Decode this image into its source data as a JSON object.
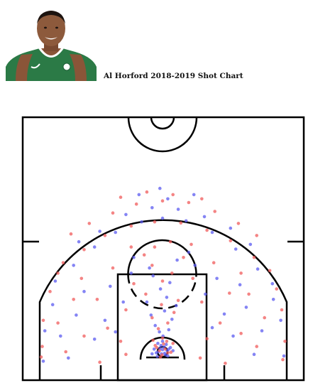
{
  "header": {
    "title": "Al Horford 2018-2019 Shot Chart",
    "photo_icon": "player-headshot-icon"
  },
  "chart_data": {
    "type": "scatter",
    "title": "Al Horford 2018-2019 Shot Chart",
    "xlabel": "",
    "ylabel": "",
    "grid": false,
    "legend": "none",
    "x_range": [
      -250,
      250
    ],
    "y_range": [
      -52,
      418
    ],
    "colors": {
      "made": "#5b5bf0",
      "missed": "#f05b5b",
      "lines": "#000000"
    },
    "series": [
      {
        "color": "#5b5bf0",
        "points": [
          [
            -2,
            -4
          ],
          [
            4,
            -3
          ],
          [
            -8,
            0
          ],
          [
            9,
            2
          ],
          [
            0,
            4
          ],
          [
            -5,
            6
          ],
          [
            6,
            -6
          ],
          [
            12,
            5
          ],
          [
            -12,
            -2
          ],
          [
            3,
            9
          ],
          [
            -3,
            12
          ],
          [
            15,
            8
          ],
          [
            -16,
            5
          ],
          [
            7,
            14
          ],
          [
            -9,
            16
          ],
          [
            0,
            20
          ],
          [
            20,
            2
          ],
          [
            -20,
            -4
          ],
          [
            10,
            -8
          ],
          [
            -10,
            -9
          ],
          [
            1,
            30
          ],
          [
            -6,
            38
          ],
          [
            12,
            42
          ],
          [
            -14,
            50
          ],
          [
            18,
            62
          ],
          [
            -22,
            70
          ],
          [
            4,
            78
          ],
          [
            26,
            88
          ],
          [
            -30,
            95
          ],
          [
            8,
            104
          ],
          [
            -4,
            120
          ],
          [
            14,
            132
          ],
          [
            -18,
            145
          ],
          [
            -90,
            38
          ],
          [
            -110,
            60
          ],
          [
            -75,
            95
          ],
          [
            -130,
            24
          ],
          [
            95,
            46
          ],
          [
            118,
            72
          ],
          [
            82,
            110
          ],
          [
            135,
            30
          ],
          [
            -60,
            150
          ],
          [
            62,
            165
          ],
          [
            -100,
            125
          ],
          [
            104,
            140
          ],
          [
            -180,
            -12
          ],
          [
            -195,
            30
          ],
          [
            -165,
            70
          ],
          [
            -150,
            115
          ],
          [
            175,
            -5
          ],
          [
            190,
            40
          ],
          [
            160,
            85
          ],
          [
            148,
            128
          ],
          [
            -210,
            90
          ],
          [
            212,
            100
          ],
          [
            -170,
            165
          ],
          [
            -130,
            200
          ],
          [
            -90,
            228
          ],
          [
            -40,
            248
          ],
          [
            0,
            255
          ],
          [
            45,
            250
          ],
          [
            95,
            228
          ],
          [
            140,
            196
          ],
          [
            182,
            158
          ],
          [
            -205,
            135
          ],
          [
            210,
            130
          ],
          [
            -120,
            230
          ],
          [
            -70,
            262
          ],
          [
            -20,
            275
          ],
          [
            30,
            272
          ],
          [
            80,
            258
          ],
          [
            130,
            236
          ],
          [
            -160,
            210
          ],
          [
            168,
            205
          ],
          [
            -45,
            300
          ],
          [
            10,
            292
          ],
          [
            60,
            300
          ],
          [
            -5,
            312
          ],
          [
            -228,
            -18
          ],
          [
            232,
            -8
          ],
          [
            -225,
            40
          ],
          [
            226,
            60
          ],
          [
            -55,
            180
          ],
          [
            50,
            190
          ],
          [
            -25,
            160
          ],
          [
            28,
            175
          ]
        ]
      },
      {
        "color": "#f05b5b",
        "points": [
          [
            -6,
            2
          ],
          [
            5,
            5
          ],
          [
            -1,
            -6
          ],
          [
            10,
            -2
          ],
          [
            -11,
            8
          ],
          [
            2,
            15
          ],
          [
            -14,
            12
          ],
          [
            16,
            -1
          ],
          [
            -4,
            -10
          ],
          [
            8,
            20
          ],
          [
            -18,
            22
          ],
          [
            20,
            16
          ],
          [
            0,
            26
          ],
          [
            -8,
            44
          ],
          [
            10,
            55
          ],
          [
            -20,
            65
          ],
          [
            22,
            75
          ],
          [
            -2,
            90
          ],
          [
            30,
            98
          ],
          [
            -32,
            110
          ],
          [
            0,
            135
          ],
          [
            18,
            150
          ],
          [
            -20,
            165
          ],
          [
            -80,
            20
          ],
          [
            -105,
            45
          ],
          [
            -70,
            80
          ],
          [
            -125,
            100
          ],
          [
            85,
            25
          ],
          [
            110,
            55
          ],
          [
            75,
            95
          ],
          [
            128,
            112
          ],
          [
            -55,
            130
          ],
          [
            58,
            140
          ],
          [
            -95,
            160
          ],
          [
            98,
            170
          ],
          [
            -185,
            0
          ],
          [
            -200,
            55
          ],
          [
            -170,
            100
          ],
          [
            -155,
            140
          ],
          [
            180,
            10
          ],
          [
            195,
            65
          ],
          [
            165,
            110
          ],
          [
            150,
            150
          ],
          [
            -215,
            115
          ],
          [
            218,
            120
          ],
          [
            -190,
            170
          ],
          [
            -150,
            195
          ],
          [
            -110,
            222
          ],
          [
            -60,
            240
          ],
          [
            -15,
            248
          ],
          [
            35,
            246
          ],
          [
            85,
            232
          ],
          [
            130,
            212
          ],
          [
            175,
            180
          ],
          [
            -200,
            150
          ],
          [
            205,
            155
          ],
          [
            -140,
            245
          ],
          [
            -95,
            265
          ],
          [
            -50,
            282
          ],
          [
            0,
            288
          ],
          [
            50,
            285
          ],
          [
            100,
            268
          ],
          [
            145,
            245
          ],
          [
            -175,
            225
          ],
          [
            180,
            222
          ],
          [
            -80,
            295
          ],
          [
            -30,
            305
          ],
          [
            20,
            300
          ],
          [
            75,
            292
          ],
          [
            -230,
            10
          ],
          [
            -232,
            -10
          ],
          [
            234,
            20
          ],
          [
            230,
            -15
          ],
          [
            -228,
            60
          ],
          [
            228,
            80
          ],
          [
            -60,
            200
          ],
          [
            55,
            205
          ],
          [
            -35,
            185
          ],
          [
            40,
            180
          ],
          [
            -15,
            200
          ],
          [
            15,
            210
          ],
          [
            -120,
            -20
          ],
          [
            120,
            -22
          ],
          [
            -70,
            -5
          ],
          [
            72,
            -12
          ],
          [
            -150,
            30
          ],
          [
            150,
            35
          ]
        ]
      }
    ]
  }
}
